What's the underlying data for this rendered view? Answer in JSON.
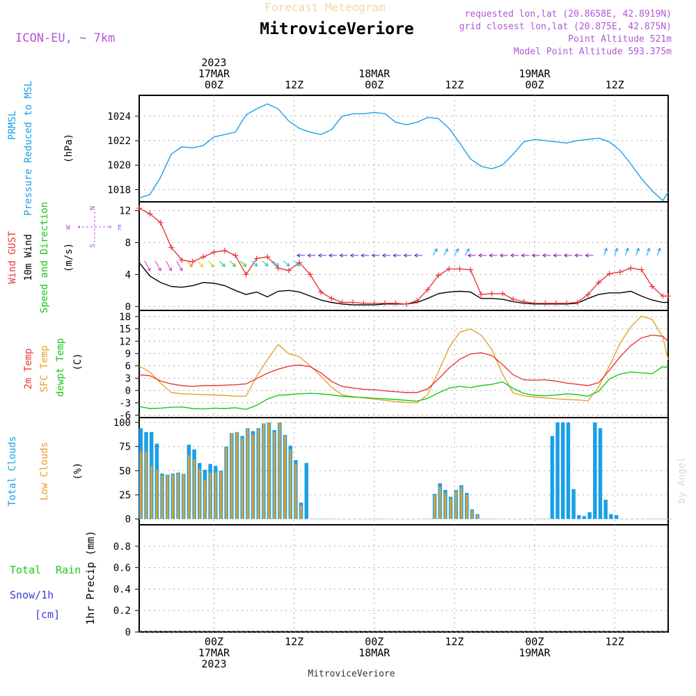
{
  "header": {
    "faint_title": "Forecast Meteogram",
    "model": "ICON-EU, ~ 7km",
    "station": "MitroviceVeriore",
    "requested": "requested lon,lat (20.8658E, 42.8919N)",
    "closest": "grid closest lon,lat (20.875E, 42.875N)",
    "point_alt": "Point Altitude 521m",
    "model_alt": "Model Point Altitude 593.375m",
    "footer_station": "MitroviceVeriore",
    "watermark": "by Angel"
  },
  "time_axis": {
    "year": "2023",
    "t_max": 99,
    "top": [
      {
        "t": 14,
        "lines": [
          "2023",
          "17MAR",
          "00Z"
        ]
      },
      {
        "t": 29,
        "lines": [
          "12Z"
        ]
      },
      {
        "t": 44,
        "lines": [
          "18MAR",
          "00Z"
        ]
      },
      {
        "t": 59,
        "lines": [
          "12Z"
        ]
      },
      {
        "t": 74,
        "lines": [
          "19MAR",
          "00Z"
        ]
      },
      {
        "t": 89,
        "lines": [
          "12Z"
        ]
      }
    ],
    "bottom": [
      {
        "t": 14,
        "lines": [
          "00Z",
          "17MAR",
          "2023"
        ]
      },
      {
        "t": 29,
        "lines": [
          "12Z"
        ]
      },
      {
        "t": 44,
        "lines": [
          "00Z",
          "18MAR"
        ]
      },
      {
        "t": 59,
        "lines": [
          "12Z"
        ]
      },
      {
        "t": 74,
        "lines": [
          "00Z",
          "19MAR"
        ]
      },
      {
        "t": 89,
        "lines": [
          "12Z"
        ]
      }
    ]
  },
  "panels": {
    "pressure": {
      "labels": [
        "PRMSL",
        "Pressure Reduced to MSL"
      ],
      "unit": "(hPa)",
      "colors": {
        "line": "#1aa0e6"
      },
      "ticks": [
        "1018",
        "1020",
        "1022",
        "1024"
      ]
    },
    "wind": {
      "labels": [
        "Wind GUST",
        "10m Wind",
        "Speed and Direction"
      ],
      "unit": "(m/s)",
      "compass": {
        "n": "N",
        "s": "S",
        "w": "W",
        "e": "E"
      },
      "colors": {
        "gust": "#e83838",
        "speed": "#000000"
      },
      "ticks": [
        "0",
        "4",
        "8",
        "12"
      ]
    },
    "temp": {
      "labels": [
        "2m Temp",
        "SFC Temp",
        "dewpt Temp"
      ],
      "unit": "(C)",
      "colors": {
        "t2m": "#e83838",
        "sfc": "#e6a028",
        "dew": "#16c816"
      },
      "ticks": [
        "-6",
        "-3",
        "0",
        "3",
        "6",
        "9",
        "12",
        "15",
        "18"
      ]
    },
    "clouds": {
      "labels": [
        "Total Clouds",
        "Low Clouds"
      ],
      "unit": "(%)",
      "colors": {
        "total": "#1aa0e6",
        "low": "#e6a028"
      },
      "ticks": [
        "0",
        "25",
        "50",
        "75",
        "100"
      ]
    },
    "precip": {
      "labels": [
        "Total",
        "Rain",
        "Snow/1h",
        "[cm]"
      ],
      "unit": "1hr Precip (mm)",
      "colors": {
        "rain": "#16c816",
        "snow": "#3c3cdc"
      },
      "ticks": [
        "0",
        "0.2",
        "0.4",
        "0.6",
        "0.8"
      ]
    }
  },
  "chart_data": [
    {
      "type": "line",
      "title": "PRMSL Pressure Reduced to MSL",
      "ylabel": "(hPa)",
      "ylim": [
        1017,
        1025.7
      ],
      "x": [
        0,
        2,
        4,
        6,
        8,
        10,
        12,
        14,
        16,
        18,
        20,
        22,
        24,
        26,
        28,
        30,
        32,
        34,
        36,
        38,
        40,
        42,
        44,
        46,
        48,
        50,
        52,
        54,
        56,
        58,
        60,
        62,
        64,
        66,
        68,
        70,
        72,
        74,
        76,
        78,
        80,
        82,
        84,
        86,
        88,
        90,
        92,
        94,
        96,
        98,
        99
      ],
      "series": [
        {
          "values": [
            1017.3,
            1017.6,
            1019.0,
            1020.9,
            1021.5,
            1021.4,
            1021.6,
            1022.3,
            1022.5,
            1022.7,
            1024.1,
            1024.6,
            1025.0,
            1024.6,
            1023.6,
            1023.0,
            1022.7,
            1022.5,
            1022.9,
            1024.0,
            1024.2,
            1024.2,
            1024.3,
            1024.2,
            1023.5,
            1023.3,
            1023.5,
            1023.9,
            1023.8,
            1023.0,
            1021.8,
            1020.5,
            1019.9,
            1019.7,
            1020.0,
            1020.9,
            1021.9,
            1022.1,
            1022.0,
            1021.9,
            1021.8,
            1022.0,
            1022.1,
            1022.2,
            1021.9,
            1021.2,
            1020.1,
            1018.9,
            1017.9,
            1017.1,
            1017.8
          ]
        }
      ]
    },
    {
      "type": "line",
      "title": "Wind GUST / 10m Wind Speed and Direction",
      "ylabel": "(m/s)",
      "ylim": [
        -0.5,
        13.1
      ],
      "x": [
        0,
        2,
        4,
        6,
        8,
        10,
        12,
        14,
        16,
        18,
        20,
        22,
        24,
        26,
        28,
        30,
        32,
        34,
        36,
        38,
        40,
        42,
        44,
        46,
        48,
        50,
        52,
        54,
        56,
        58,
        60,
        62,
        64,
        66,
        68,
        70,
        72,
        74,
        76,
        78,
        80,
        82,
        84,
        86,
        88,
        90,
        92,
        94,
        96,
        98,
        99
      ],
      "series": [
        {
          "name": "Wind GUST",
          "values": [
            12.3,
            11.6,
            10.5,
            7.4,
            5.8,
            5.6,
            6.2,
            6.8,
            7.0,
            6.4,
            4.0,
            6.0,
            6.2,
            4.8,
            4.5,
            5.5,
            4.0,
            1.8,
            1.0,
            0.5,
            0.5,
            0.4,
            0.4,
            0.4,
            0.4,
            0.3,
            0.7,
            2.1,
            3.9,
            4.7,
            4.7,
            4.6,
            1.5,
            1.6,
            1.6,
            0.9,
            0.6,
            0.4,
            0.4,
            0.4,
            0.4,
            0.5,
            1.5,
            3.0,
            4.1,
            4.3,
            4.8,
            4.6,
            2.5,
            1.3,
            1.3
          ]
        },
        {
          "name": "10m Wind",
          "values": [
            5.5,
            3.8,
            3.0,
            2.5,
            2.4,
            2.6,
            3.0,
            2.9,
            2.6,
            2.0,
            1.5,
            1.8,
            1.2,
            1.9,
            2.0,
            1.8,
            1.3,
            0.8,
            0.5,
            0.3,
            0.2,
            0.2,
            0.2,
            0.3,
            0.3,
            0.3,
            0.5,
            1.0,
            1.6,
            1.8,
            1.9,
            1.8,
            1.0,
            1.0,
            0.9,
            0.6,
            0.4,
            0.3,
            0.3,
            0.3,
            0.3,
            0.4,
            1.0,
            1.5,
            1.7,
            1.7,
            1.9,
            1.3,
            0.8,
            0.5,
            0.5
          ]
        }
      ]
    },
    {
      "type": "line",
      "title": "2m Temp / SFC Temp / dewpt Temp",
      "ylabel": "(C)",
      "ylim": [
        -6.6,
        19.5
      ],
      "x": [
        0,
        2,
        4,
        6,
        8,
        10,
        12,
        14,
        16,
        18,
        20,
        22,
        24,
        26,
        28,
        30,
        32,
        34,
        36,
        38,
        40,
        42,
        44,
        46,
        48,
        50,
        52,
        54,
        56,
        58,
        60,
        62,
        64,
        66,
        68,
        70,
        72,
        74,
        76,
        78,
        80,
        82,
        84,
        86,
        88,
        90,
        92,
        94,
        96,
        98,
        99
      ],
      "series": [
        {
          "name": "2m Temp",
          "values": [
            3.8,
            3.6,
            2.3,
            1.6,
            1.2,
            1.0,
            1.2,
            1.2,
            1.3,
            1.4,
            1.6,
            2.9,
            4.2,
            5.2,
            5.9,
            6.2,
            5.8,
            4.3,
            2.2,
            1.0,
            0.6,
            0.3,
            0.2,
            -0.1,
            -0.3,
            -0.5,
            -0.5,
            0.4,
            2.8,
            5.5,
            7.6,
            8.9,
            9.2,
            8.5,
            6.3,
            3.8,
            2.6,
            2.5,
            2.6,
            2.3,
            1.8,
            1.5,
            1.2,
            1.9,
            4.9,
            8.2,
            10.9,
            12.8,
            13.5,
            13.2,
            12.0
          ]
        },
        {
          "name": "SFC Temp",
          "values": [
            6.0,
            4.5,
            1.8,
            -0.5,
            -0.8,
            -0.9,
            -1.0,
            -1.1,
            -1.2,
            -1.4,
            -1.4,
            3.5,
            7.5,
            11.2,
            9.0,
            8.2,
            6.0,
            3.5,
            0.8,
            -1.1,
            -1.5,
            -1.8,
            -2.1,
            -2.4,
            -2.7,
            -2.9,
            -3.0,
            -1.0,
            4.6,
            10.5,
            14.2,
            15.0,
            13.5,
            10.0,
            4.0,
            -0.6,
            -1.3,
            -1.6,
            -1.8,
            -2.0,
            -2.2,
            -2.3,
            -2.5,
            0.8,
            6.0,
            11.5,
            15.5,
            18.1,
            17.3,
            13.0,
            7.5
          ]
        },
        {
          "name": "dewpt Temp",
          "values": [
            -3.9,
            -4.4,
            -4.3,
            -4.1,
            -4.0,
            -4.4,
            -4.5,
            -4.3,
            -4.4,
            -4.2,
            -4.6,
            -3.6,
            -2.1,
            -1.2,
            -1.0,
            -0.8,
            -0.7,
            -0.8,
            -1.1,
            -1.4,
            -1.6,
            -1.7,
            -1.9,
            -2.0,
            -2.2,
            -2.4,
            -2.6,
            -1.9,
            -0.6,
            0.6,
            1.0,
            0.7,
            1.2,
            1.5,
            2.1,
            0.5,
            -0.7,
            -1.2,
            -1.3,
            -1.1,
            -0.8,
            -1.0,
            -1.4,
            -0.2,
            2.8,
            4.0,
            4.5,
            4.3,
            4.1,
            5.8,
            5.5
          ]
        }
      ]
    },
    {
      "type": "bar",
      "title": "Total Clouds / Low Clouds",
      "ylabel": "(%)",
      "ylim": [
        -6,
        105
      ],
      "x": [
        0,
        1,
        2,
        3,
        4,
        5,
        6,
        7,
        8,
        9,
        10,
        11,
        12,
        13,
        14,
        15,
        16,
        17,
        18,
        19,
        20,
        21,
        22,
        23,
        24,
        25,
        26,
        27,
        28,
        29,
        30,
        31,
        32,
        33,
        34,
        35,
        36,
        37,
        38,
        39,
        40,
        41,
        42,
        43,
        44,
        45,
        46,
        47,
        48,
        49,
        50,
        51,
        52,
        53,
        54,
        55,
        56,
        57,
        58,
        59,
        60,
        61,
        62,
        63,
        64,
        65,
        66,
        67,
        68,
        69,
        70,
        71,
        72,
        73,
        74,
        75,
        76,
        77,
        78,
        79,
        80,
        81,
        82,
        83,
        84,
        85,
        86,
        87,
        88,
        89,
        90,
        91,
        92,
        93,
        94,
        95,
        96,
        97,
        98,
        99
      ],
      "series": [
        {
          "name": "Total Clouds",
          "values": [
            94,
            90,
            90,
            78,
            47,
            46,
            47,
            48,
            47,
            77,
            72,
            58,
            51,
            57,
            55,
            50,
            75,
            89,
            90,
            86,
            94,
            91,
            94,
            99,
            100,
            92,
            100,
            87,
            76,
            61,
            17,
            58,
            0,
            0,
            0,
            0,
            0,
            0,
            0,
            0,
            0,
            0,
            0,
            0,
            0,
            0,
            0,
            0,
            0,
            0,
            0,
            0,
            0,
            0,
            0,
            26,
            37,
            30,
            23,
            30,
            35,
            27,
            10,
            5,
            0,
            0,
            0,
            0,
            0,
            0,
            0,
            0,
            0,
            0,
            0,
            0,
            0,
            86,
            100,
            100,
            100,
            31,
            4,
            3,
            7,
            100,
            94,
            20,
            5,
            4,
            0,
            0,
            0,
            0,
            0,
            0,
            0,
            0,
            0,
            0
          ]
        },
        {
          "name": "Low Clouds",
          "values": [
            70,
            70,
            55,
            51,
            45,
            46,
            46,
            47,
            47,
            66,
            62,
            52,
            40,
            48,
            48,
            49,
            74,
            89,
            90,
            84,
            94,
            87,
            93,
            99,
            100,
            90,
            100,
            86,
            72,
            57,
            14,
            0,
            0,
            0,
            0,
            0,
            0,
            0,
            0,
            0,
            0,
            0,
            0,
            0,
            0,
            0,
            0,
            0,
            0,
            0,
            0,
            0,
            0,
            0,
            0,
            25,
            33,
            27,
            21,
            29,
            33,
            25,
            9,
            4,
            0,
            0,
            0,
            0,
            0,
            0,
            0,
            0,
            0,
            0,
            0,
            0,
            0,
            0,
            0,
            0,
            0,
            0,
            0,
            0,
            0,
            0,
            0,
            0,
            0,
            0,
            0,
            0,
            0,
            0,
            0,
            0,
            0,
            0,
            0,
            0
          ]
        }
      ]
    },
    {
      "type": "bar",
      "title": "Total Rain / Snow",
      "ylabel": "1hr Precip (mm)",
      "ylim": [
        0,
        1.0
      ],
      "x": [],
      "series": [
        {
          "name": "Rain",
          "values": []
        }
      ]
    }
  ]
}
